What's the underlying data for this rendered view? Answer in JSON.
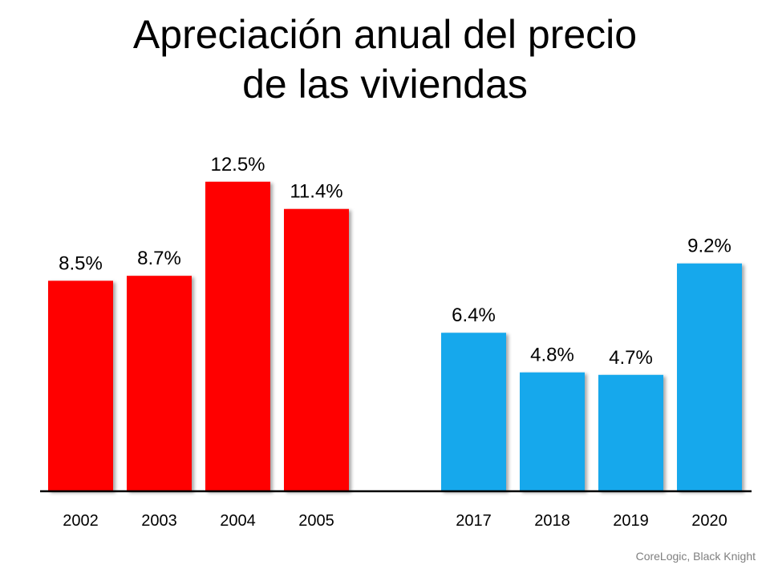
{
  "chart_data": {
    "type": "bar",
    "title_lines": [
      "Apreciación anual del precio",
      "de las viviendas"
    ],
    "categories": [
      "2002",
      "2003",
      "2004",
      "2005",
      "",
      "2017",
      "2018",
      "2019",
      "2020"
    ],
    "values": [
      8.5,
      8.7,
      12.5,
      11.4,
      null,
      6.4,
      4.8,
      4.7,
      9.2
    ],
    "data_labels": [
      "8.5%",
      "8.7%",
      "12.5%",
      "11.4%",
      "",
      "6.4%",
      "4.8%",
      "4.7%",
      "9.2%"
    ],
    "bar_colors": [
      "#FF0000",
      "#FF0000",
      "#FF0000",
      "#FF0000",
      "",
      "#14A8EC",
      "#14A8EC",
      "#14A8EC",
      "#14A8EC"
    ],
    "xlabel": "",
    "ylabel": "",
    "ylim": [
      0,
      13.5
    ],
    "grid": false,
    "legend": "none",
    "source": "CoreLogic, Black Knight"
  }
}
